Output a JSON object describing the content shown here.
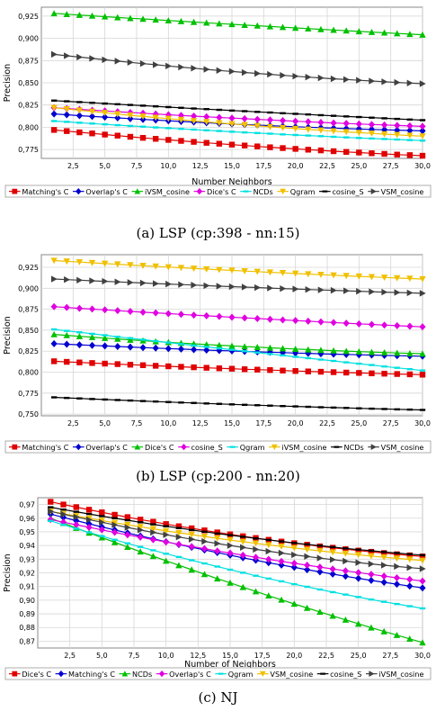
{
  "chart_data": [
    {
      "type": "line",
      "caption": "(a)  LSP (cp:398 - nn:15)",
      "xlabel": "Number Neighbors",
      "ylabel": "Precision",
      "xlim": [
        0,
        30
      ],
      "ylim": [
        0.765,
        0.935
      ],
      "xticks": [
        "2,5",
        "5,0",
        "7,5",
        "10,0",
        "12,5",
        "15,0",
        "17,5",
        "20,0",
        "22,5",
        "25,0",
        "27,5",
        "30,0"
      ],
      "yticks": [
        "0,775",
        "0,800",
        "0,825",
        "0,850",
        "0,875",
        "0,900",
        "0,925"
      ],
      "ytick_values": [
        0.775,
        0.8,
        0.825,
        0.85,
        0.875,
        0.9,
        0.925
      ],
      "grid": true,
      "legend_position": "bottom",
      "x": [
        1,
        2,
        3,
        4,
        5,
        6,
        7,
        8,
        9,
        10,
        11,
        12,
        13,
        14,
        15,
        16,
        17,
        18,
        19,
        20,
        21,
        22,
        23,
        24,
        25,
        26,
        27,
        28,
        29,
        30
      ],
      "series": [
        {
          "name": "Matching's C",
          "color": "#e00000",
          "marker": "square",
          "start": 0.797,
          "end": 0.768,
          "curve": 0.35
        },
        {
          "name": "Overlap's C",
          "color": "#0000d0",
          "marker": "diamond",
          "start": 0.815,
          "end": 0.796,
          "curve": 0.45
        },
        {
          "name": "iVSM_cosine",
          "color": "#00c000",
          "marker": "triangle-up",
          "start": 0.928,
          "end": 0.904,
          "curve": 0.1
        },
        {
          "name": "Dice's C",
          "color": "#e000e0",
          "marker": "diamond",
          "start": 0.822,
          "end": 0.801,
          "curve": 0.3
        },
        {
          "name": "NCDs",
          "color": "#00e0e0",
          "marker": "dash",
          "start": 0.807,
          "end": 0.785,
          "curve": 0.25
        },
        {
          "name": "Qgram",
          "color": "#f0c000",
          "marker": "triangle-down",
          "start": 0.822,
          "end": 0.79,
          "curve": 0.35
        },
        {
          "name": "cosine_S",
          "color": "#000000",
          "marker": "dash",
          "start": 0.83,
          "end": 0.808,
          "curve": 0.1
        },
        {
          "name": "VSM_cosine",
          "color": "#404040",
          "marker": "triangle-right",
          "start": 0.882,
          "end": 0.849,
          "curve": 0.4
        }
      ]
    },
    {
      "type": "line",
      "caption": "(b)  LSP (cp:200 - nn:20)",
      "xlabel": "",
      "ylabel": "Precision",
      "xlim": [
        0,
        30
      ],
      "ylim": [
        0.748,
        0.94
      ],
      "xticks": [
        "2,5",
        "5,0",
        "7,5",
        "10,0",
        "12,5",
        "15,0",
        "17,5",
        "20,0",
        "22,5",
        "25,0",
        "27,5",
        "30,0"
      ],
      "yticks": [
        "0,750",
        "0,775",
        "0,800",
        "0,825",
        "0,850",
        "0,875",
        "0,900",
        "0,925"
      ],
      "ytick_values": [
        0.75,
        0.775,
        0.8,
        0.825,
        0.85,
        0.875,
        0.9,
        0.925
      ],
      "grid": true,
      "legend_position": "bottom",
      "x": [
        1,
        2,
        3,
        4,
        5,
        6,
        7,
        8,
        9,
        10,
        11,
        12,
        13,
        14,
        15,
        16,
        17,
        18,
        19,
        20,
        21,
        22,
        23,
        24,
        25,
        26,
        27,
        28,
        29,
        30
      ],
      "series": [
        {
          "name": "Matching's C",
          "color": "#e00000",
          "marker": "square",
          "start": 0.813,
          "end": 0.797,
          "curve": 0.3
        },
        {
          "name": "Overlap's C",
          "color": "#0000d0",
          "marker": "diamond",
          "start": 0.834,
          "end": 0.819,
          "curve": 0.4
        },
        {
          "name": "Dice's C",
          "color": "#00c000",
          "marker": "triangle-up",
          "start": 0.845,
          "end": 0.822,
          "curve": 0.45
        },
        {
          "name": "cosine_S",
          "color": "#e000e0",
          "marker": "diamond",
          "start": 0.878,
          "end": 0.854,
          "curve": 0.15
        },
        {
          "name": "Qgram",
          "color": "#00e0e0",
          "marker": "dash",
          "start": 0.851,
          "end": 0.802,
          "curve": 0.05
        },
        {
          "name": "iVSM_cosine",
          "color": "#f0c000",
          "marker": "triangle-down",
          "start": 0.933,
          "end": 0.911,
          "curve": 0.2
        },
        {
          "name": "NCDs",
          "color": "#000000",
          "marker": "dash",
          "start": 0.77,
          "end": 0.755,
          "curve": 0.3
        },
        {
          "name": "VSM_cosine",
          "color": "#404040",
          "marker": "triangle-right",
          "start": 0.911,
          "end": 0.894,
          "curve": 0.2
        }
      ]
    },
    {
      "type": "line",
      "caption": "(c)  NJ",
      "xlabel": "Number of Neighbors",
      "ylabel": "Precision",
      "xlim": [
        0,
        30
      ],
      "ylim": [
        0.865,
        0.975
      ],
      "xticks": [
        "2,5",
        "5,0",
        "7,5",
        "10,0",
        "12,5",
        "15,0",
        "17,5",
        "20,0",
        "22,5",
        "25,0",
        "27,5",
        "30,0"
      ],
      "yticks": [
        "0,87",
        "0,88",
        "0,89",
        "0,90",
        "0,91",
        "0,92",
        "0,93",
        "0,94",
        "0,95",
        "0,96",
        "0,97"
      ],
      "ytick_values": [
        0.87,
        0.88,
        0.89,
        0.9,
        0.91,
        0.92,
        0.93,
        0.94,
        0.95,
        0.96,
        0.97
      ],
      "grid": true,
      "legend_position": "bottom",
      "x": [
        1,
        2,
        3,
        4,
        5,
        6,
        7,
        8,
        9,
        10,
        11,
        12,
        13,
        14,
        15,
        16,
        17,
        18,
        19,
        20,
        21,
        22,
        23,
        24,
        25,
        26,
        27,
        28,
        29,
        30
      ],
      "series": [
        {
          "name": "Dice's C",
          "color": "#e00000",
          "marker": "square",
          "start": 0.972,
          "end": 0.932,
          "curve": 0.45
        },
        {
          "name": "Matching's C",
          "color": "#0000d0",
          "marker": "diamond",
          "start": 0.963,
          "end": 0.909,
          "curve": 0.3
        },
        {
          "name": "NCDs",
          "color": "#00c000",
          "marker": "triangle-up",
          "start": 0.96,
          "end": 0.869,
          "curve": 0.15
        },
        {
          "name": "Overlap's C",
          "color": "#e000e0",
          "marker": "diamond",
          "start": 0.959,
          "end": 0.914,
          "curve": 0.25
        },
        {
          "name": "Qgram",
          "color": "#00e0e0",
          "marker": "dash",
          "start": 0.958,
          "end": 0.894,
          "curve": 0.3
        },
        {
          "name": "VSM_cosine",
          "color": "#f0c000",
          "marker": "triangle-down",
          "start": 0.965,
          "end": 0.929,
          "curve": 0.4
        },
        {
          "name": "cosine_S",
          "color": "#000000",
          "marker": "dash",
          "start": 0.968,
          "end": 0.933,
          "curve": 0.4
        },
        {
          "name": "iVSM_cosine",
          "color": "#404040",
          "marker": "triangle-right",
          "start": 0.965,
          "end": 0.923,
          "curve": 0.45
        }
      ]
    }
  ]
}
